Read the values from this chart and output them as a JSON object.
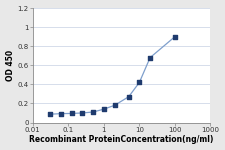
{
  "x": [
    0.031,
    0.063,
    0.125,
    0.25,
    0.5,
    1.0,
    2.0,
    5.0,
    10.0,
    20.0,
    100.0
  ],
  "y": [
    0.087,
    0.093,
    0.095,
    0.1,
    0.11,
    0.14,
    0.18,
    0.27,
    0.42,
    0.68,
    0.9
  ],
  "line_color": "#7f9fcc",
  "marker_color": "#1f3b6e",
  "xlabel": "Recombinant ProteinConcentration(ng/ml)",
  "ylabel": "OD 450",
  "xlim": [
    0.01,
    1000
  ],
  "ylim": [
    0,
    1.2
  ],
  "yticks": [
    0,
    0.2,
    0.4,
    0.6,
    0.8,
    1.0,
    1.2
  ],
  "ytick_labels": [
    "0",
    "0.2",
    "0.4",
    "0.6",
    "0.8",
    "1",
    "1.2"
  ],
  "xticks": [
    0.01,
    0.1,
    1,
    10,
    100,
    1000
  ],
  "xtick_labels": [
    "0.01",
    "0.1",
    "1",
    "10",
    "100",
    "1000"
  ],
  "plot_bg_color": "#ffffff",
  "fig_bg_color": "#e8e8e8",
  "grid_color": "#d0d8e8",
  "axis_fontsize": 5.5,
  "tick_fontsize": 5.0,
  "linewidth": 0.9,
  "markersize": 3.5
}
